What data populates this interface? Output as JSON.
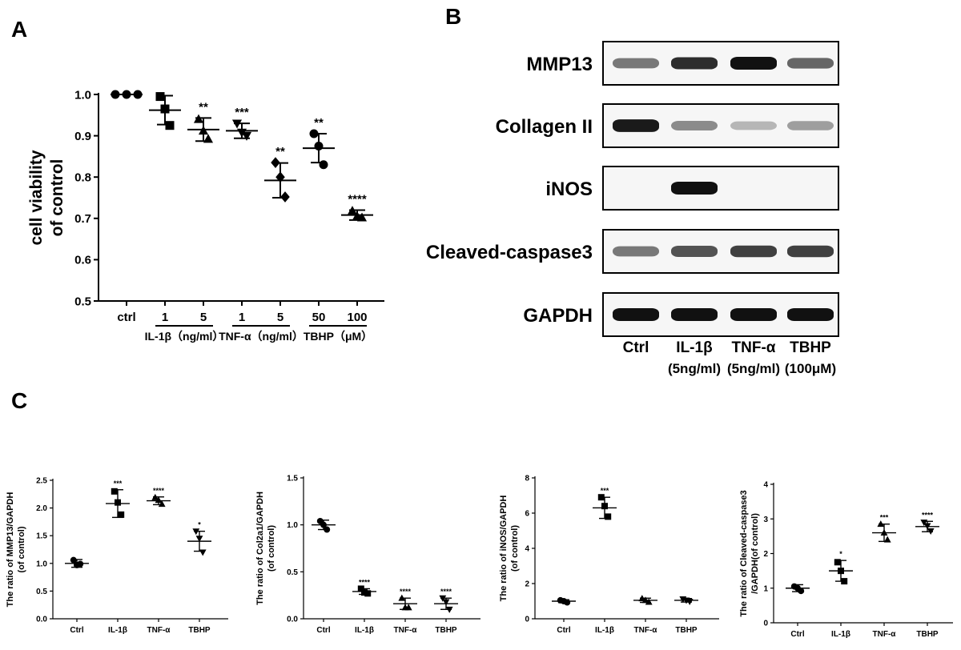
{
  "panel_letters": [
    "A",
    "B",
    "C"
  ],
  "chart_data": [
    {
      "id": "A",
      "type": "scatter",
      "title": "",
      "ylabel": "cell viability\nof control",
      "ylim": [
        0.5,
        1.0
      ],
      "yticks": [
        0.5,
        0.6,
        0.7,
        0.8,
        0.9,
        1.0
      ],
      "categories": [
        "ctrl",
        "1",
        "5",
        "1",
        "5",
        "50",
        "100"
      ],
      "groups": [
        {
          "label": "IL-1β（ng/ml）",
          "members": [
            1,
            2
          ]
        },
        {
          "label": "TNF-α（ng/ml）",
          "members": [
            3,
            4
          ]
        },
        {
          "label": "TBHP（μM）",
          "members": [
            5,
            6
          ]
        }
      ],
      "mean": [
        1.0,
        0.962,
        0.915,
        0.912,
        0.792,
        0.87,
        0.708
      ],
      "sd": [
        0.0,
        0.035,
        0.028,
        0.018,
        0.042,
        0.035,
        0.012
      ],
      "points": [
        [
          1.0,
          1.0,
          1.0
        ],
        [
          0.995,
          0.965,
          0.925
        ],
        [
          0.94,
          0.912,
          0.892
        ],
        [
          0.93,
          0.908,
          0.9
        ],
        [
          0.835,
          0.8,
          0.752
        ],
        [
          0.905,
          0.875,
          0.83
        ],
        [
          0.718,
          0.705,
          0.702
        ]
      ],
      "markers": [
        "circle",
        "square",
        "triangle",
        "invtriangle",
        "diamond",
        "circle",
        "triangle"
      ],
      "significance": [
        "",
        "",
        "**",
        "***",
        "**",
        "**",
        "****"
      ]
    },
    {
      "id": "C1",
      "type": "scatter",
      "title": "",
      "ylabel": "The ratio of MMP13/GAPDH\n(of control)",
      "ylim": [
        0.0,
        2.5
      ],
      "yticks": [
        0.0,
        0.5,
        1.0,
        1.5,
        2.0,
        2.5
      ],
      "ytick_labels": [
        "0.0",
        "0.5",
        "1.0",
        "1.5",
        "2.0",
        "2.5"
      ],
      "categories": [
        "Ctrl",
        "IL-1β",
        "TNF-α",
        "TBHP"
      ],
      "mean": [
        1.0,
        2.08,
        2.13,
        1.4
      ],
      "sd": [
        0.07,
        0.25,
        0.07,
        0.18
      ],
      "points": [
        [
          1.06,
          0.97,
          0.99
        ],
        [
          2.3,
          2.1,
          1.88
        ],
        [
          2.19,
          2.14,
          2.07
        ],
        [
          1.58,
          1.45,
          1.2
        ]
      ],
      "markers": [
        "circle",
        "square",
        "triangle",
        "invtriangle"
      ],
      "significance": [
        "",
        "***",
        "****",
        "*"
      ]
    },
    {
      "id": "C2",
      "type": "scatter",
      "title": "",
      "ylabel": "The ratio of Col2a1/GAPDH\n(of control)",
      "ylim": [
        0.0,
        1.5
      ],
      "yticks": [
        0.0,
        0.5,
        1.0,
        1.5
      ],
      "ytick_labels": [
        "0.0",
        "0.5",
        "1.0",
        "1.5"
      ],
      "categories": [
        "Ctrl",
        "IL-1β",
        "TNF-α",
        "TBHP"
      ],
      "mean": [
        1.0,
        0.29,
        0.16,
        0.16
      ],
      "sd": [
        0.05,
        0.03,
        0.06,
        0.06
      ],
      "points": [
        [
          1.04,
          1.0,
          0.95
        ],
        [
          0.32,
          0.28,
          0.27
        ],
        [
          0.22,
          0.12,
          0.12
        ],
        [
          0.22,
          0.18,
          0.1
        ]
      ],
      "markers": [
        "circle",
        "square",
        "triangle",
        "invtriangle"
      ],
      "significance": [
        "",
        "****",
        "****",
        "****"
      ]
    },
    {
      "id": "C3",
      "type": "scatter",
      "title": "",
      "ylabel": "The ratio of iNOS/GAPDH\n(of control)",
      "ylim": [
        0,
        8
      ],
      "yticks": [
        0,
        2,
        4,
        6,
        8
      ],
      "ytick_labels": [
        "0",
        "2",
        "4",
        "6",
        "8"
      ],
      "categories": [
        "Ctrl",
        "IL-1β",
        "TNF-α",
        "TBHP"
      ],
      "mean": [
        1.0,
        6.3,
        1.05,
        1.05
      ],
      "sd": [
        0.08,
        0.6,
        0.12,
        0.1
      ],
      "points": [
        [
          1.05,
          1.0,
          0.93
        ],
        [
          6.9,
          6.4,
          5.8
        ],
        [
          1.15,
          1.05,
          0.95
        ],
        [
          1.12,
          1.05,
          0.98
        ]
      ],
      "markers": [
        "circle",
        "square",
        "triangle",
        "invtriangle"
      ],
      "significance": [
        "",
        "***",
        "",
        ""
      ]
    },
    {
      "id": "C4",
      "type": "scatter",
      "title": "",
      "ylabel": "The ratio of Cleaved-caspase3\n/GAPDH(of control)",
      "ylim": [
        0,
        4
      ],
      "yticks": [
        0,
        1,
        2,
        3,
        4
      ],
      "ytick_labels": [
        "0",
        "1",
        "2",
        "3",
        "4"
      ],
      "categories": [
        "Ctrl",
        "IL-1β",
        "TNF-α",
        "TBHP"
      ],
      "mean": [
        1.0,
        1.5,
        2.6,
        2.78
      ],
      "sd": [
        0.1,
        0.3,
        0.25,
        0.15
      ],
      "points": [
        [
          1.05,
          1.0,
          0.92
        ],
        [
          1.75,
          1.5,
          1.2
        ],
        [
          2.85,
          2.6,
          2.4
        ],
        [
          2.9,
          2.8,
          2.65
        ]
      ],
      "markers": [
        "circle",
        "square",
        "triangle",
        "invtriangle"
      ],
      "significance": [
        "",
        "*",
        "***",
        "****"
      ]
    }
  ],
  "western_blot": {
    "proteins": [
      "MMP13",
      "Collagen II",
      "iNOS",
      "Cleaved-caspase3",
      "GAPDH"
    ],
    "lanes": [
      {
        "label": "Ctrl",
        "sub": ""
      },
      {
        "label": "IL-1β",
        "sub": "(5ng/ml)"
      },
      {
        "label": "TNF-α",
        "sub": "(5ng/ml)"
      },
      {
        "label": "TBHP",
        "sub": "(100μM)"
      }
    ],
    "band_intensity": [
      [
        0.45,
        0.85,
        1.0,
        0.55
      ],
      [
        0.95,
        0.35,
        0.12,
        0.25
      ],
      [
        0.0,
        1.0,
        0.0,
        0.0
      ],
      [
        0.45,
        0.65,
        0.75,
        0.75
      ],
      [
        1.0,
        1.0,
        1.0,
        1.0
      ]
    ],
    "colors": {
      "band": "#111111",
      "frame": "#000000"
    }
  }
}
